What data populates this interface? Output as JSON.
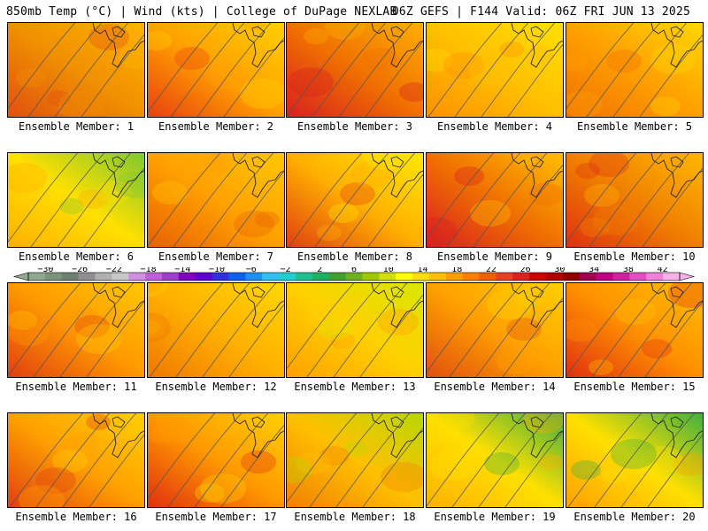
{
  "header": {
    "left": "850mb Temp (°C) | Wind (kts) | College of DuPage NEXLAB",
    "right": "06Z GEFS | F144 Valid: 06Z FRI JUN 13 2025"
  },
  "members": [
    {
      "caption": "Ensemble Member: 1",
      "palette": [
        "#e05010",
        "#f09000",
        "#ffb300"
      ]
    },
    {
      "caption": "Ensemble Member: 2",
      "palette": [
        "#e84010",
        "#ffa000",
        "#ffd000"
      ]
    },
    {
      "caption": "Ensemble Member: 3",
      "palette": [
        "#d82020",
        "#f07000",
        "#ffb000"
      ]
    },
    {
      "caption": "Ensemble Member: 4",
      "palette": [
        "#ff9000",
        "#ffc000",
        "#ffe000"
      ]
    },
    {
      "caption": "Ensemble Member: 5",
      "palette": [
        "#f07000",
        "#ffa000",
        "#ffd800"
      ]
    },
    {
      "caption": "Ensemble Member: 6",
      "palette": [
        "#ffb000",
        "#ffe000",
        "#80c830"
      ]
    },
    {
      "caption": "Ensemble Member: 7",
      "palette": [
        "#e86000",
        "#ffa000",
        "#ffc800"
      ]
    },
    {
      "caption": "Ensemble Member: 8",
      "palette": [
        "#e04010",
        "#ffb000",
        "#ffe800"
      ]
    },
    {
      "caption": "Ensemble Member: 9",
      "palette": [
        "#d82020",
        "#f07000",
        "#ffc000"
      ]
    },
    {
      "caption": "Ensemble Member: 10",
      "palette": [
        "#e03010",
        "#f08000",
        "#ffb800"
      ]
    },
    {
      "caption": "Ensemble Member: 11",
      "palette": [
        "#e04010",
        "#ff9800",
        "#ffc800"
      ]
    },
    {
      "caption": "Ensemble Member: 12",
      "palette": [
        "#f07800",
        "#ffb000",
        "#ffd800"
      ]
    },
    {
      "caption": "Ensemble Member: 13",
      "palette": [
        "#ffa000",
        "#ffd000",
        "#d8e800"
      ]
    },
    {
      "caption": "Ensemble Member: 14",
      "palette": [
        "#e05010",
        "#ffa000",
        "#ffd000"
      ]
    },
    {
      "caption": "Ensemble Member: 15",
      "palette": [
        "#e03010",
        "#ff9000",
        "#ffc000"
      ]
    },
    {
      "caption": "Ensemble Member: 16",
      "palette": [
        "#e04010",
        "#ffa000",
        "#ffd000"
      ]
    },
    {
      "caption": "Ensemble Member: 17",
      "palette": [
        "#e03010",
        "#ff9800",
        "#ffd000"
      ]
    },
    {
      "caption": "Ensemble Member: 18",
      "palette": [
        "#f08000",
        "#ffc000",
        "#b8d800"
      ]
    },
    {
      "caption": "Ensemble Member: 19",
      "palette": [
        "#ffb000",
        "#ffe000",
        "#40b040"
      ]
    },
    {
      "caption": "Ensemble Member: 20",
      "palette": [
        "#ffa000",
        "#ffe000",
        "#40b040"
      ]
    }
  ],
  "colorbar": {
    "labels": [
      "−30",
      "−26",
      "−22",
      "−18",
      "−14",
      "−10",
      "−6",
      "−2",
      "2",
      "6",
      "10",
      "14",
      "18",
      "22",
      "26",
      "30",
      "34",
      "38",
      "42"
    ],
    "colors": [
      "#90a890",
      "#7a947a",
      "#708070",
      "#909090",
      "#b0b0b0",
      "#c8c8c8",
      "#d090e0",
      "#c060d8",
      "#a040c8",
      "#8000c0",
      "#6000d0",
      "#3030e0",
      "#1060f0",
      "#2090f0",
      "#30c0f0",
      "#20d0d0",
      "#20c090",
      "#20b060",
      "#40a030",
      "#70b020",
      "#a0c800",
      "#d0e000",
      "#ffff00",
      "#ffe000",
      "#ffc000",
      "#ffa000",
      "#ff8000",
      "#f06000",
      "#e84020",
      "#e02020",
      "#d00000",
      "#b00000",
      "#900000",
      "#a00050",
      "#c00080",
      "#d020a0",
      "#e050c0",
      "#f080d8",
      "#f8b0e8"
    ]
  }
}
